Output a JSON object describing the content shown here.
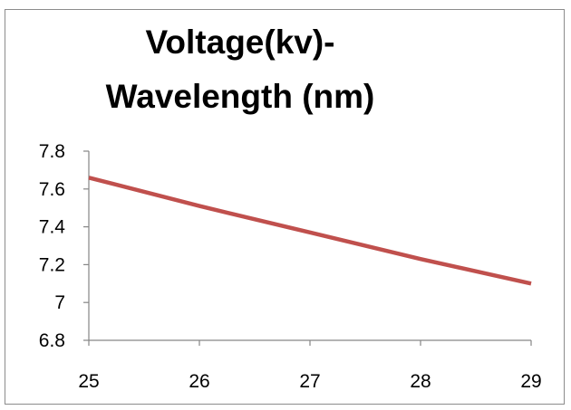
{
  "chart_data": {
    "type": "line",
    "title_lines": [
      "Voltage(kv)-",
      "Wavelength (nm)"
    ],
    "xlabel": "",
    "ylabel": "",
    "x": [
      25,
      26,
      27,
      28,
      29
    ],
    "series": [
      {
        "name": "Wavelength",
        "values": [
          7.66,
          7.51,
          7.37,
          7.23,
          7.1
        ],
        "color": "#c0504d"
      }
    ],
    "xticks": [
      "25",
      "26",
      "27",
      "28",
      "29"
    ],
    "yticks": [
      "6.8",
      "7",
      "7.2",
      "7.4",
      "7.6",
      "7.8"
    ],
    "ylim": [
      6.8,
      7.8
    ],
    "xlim": [
      25,
      29
    ],
    "grid": false,
    "legend": "none"
  }
}
